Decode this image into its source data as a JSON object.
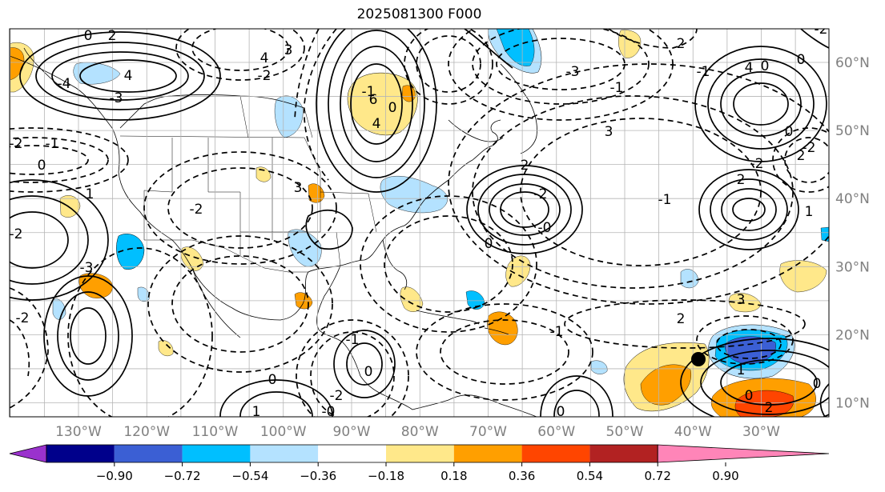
{
  "title": "2025081300 F000",
  "colors": {
    "land": "#000000",
    "grid": "#b5b5b5",
    "contour": "#000000",
    "tick_text": "#808080",
    "marker": "#000000"
  },
  "map": {
    "lon_ticks": [
      "130°W",
      "120°W",
      "110°W",
      "100°W",
      "90°W",
      "80°W",
      "70°W",
      "60°W",
      "50°W",
      "40°W",
      "30°W"
    ],
    "lat_ticks": [
      "60°N",
      "50°N",
      "40°N",
      "30°N",
      "20°N",
      "10°N"
    ],
    "contour_labels": [
      "0",
      "2",
      "4",
      "-4",
      "-3",
      "-2",
      "-1",
      "0",
      "3",
      "4",
      "-2",
      "-3",
      "1",
      "-2",
      "-2",
      "6",
      "4",
      "-1",
      "0",
      "-2",
      "3",
      "2",
      "-2",
      "-0",
      "-1",
      "3",
      "-3",
      "0",
      "0",
      "-2",
      "4",
      "3",
      "0",
      "2",
      "-1",
      "2",
      "-2",
      "1",
      "2",
      "-1",
      "2",
      "0",
      "2",
      "1",
      "0",
      "0",
      "-1",
      "0",
      "-0",
      "-2",
      "-1",
      "0",
      "1",
      "-2",
      "0"
    ],
    "marker": "storm-center"
  },
  "colorbar": {
    "ticks": [
      "−0.90",
      "−0.72",
      "−0.54",
      "−0.36",
      "−0.18",
      "0.18",
      "0.36",
      "0.54",
      "0.72",
      "0.90"
    ],
    "colors": [
      "#9a32cd",
      "#00008b",
      "#3b5fd4",
      "#00bfff",
      "#b4e2ff",
      "#ffffff",
      "#ffe88a",
      "#ff9f00",
      "#ff4500",
      "#b22222",
      "#ff85b8"
    ]
  }
}
